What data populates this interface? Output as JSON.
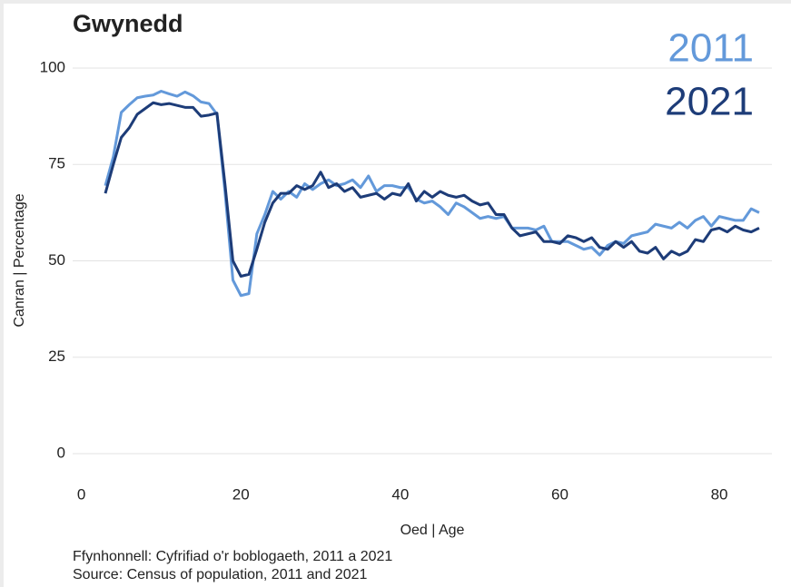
{
  "chart_data": {
    "type": "line",
    "title": "Gwynedd",
    "x_label": "Oed | Age",
    "y_label": "Canran | Percentage",
    "source": [
      "Ffynhonnell: Cyfrifiad o'r boblogaeth, 2011 a 2021",
      "Source: Census of population, 2011 and 2021"
    ],
    "x": [
      3,
      4,
      5,
      6,
      7,
      8,
      9,
      10,
      11,
      12,
      13,
      14,
      15,
      16,
      17,
      18,
      19,
      20,
      21,
      22,
      23,
      24,
      25,
      26,
      27,
      28,
      29,
      30,
      31,
      32,
      33,
      34,
      35,
      36,
      37,
      38,
      39,
      40,
      41,
      42,
      43,
      44,
      45,
      46,
      47,
      48,
      49,
      50,
      51,
      52,
      53,
      54,
      55,
      56,
      57,
      58,
      59,
      60,
      61,
      62,
      63,
      64,
      65,
      66,
      67,
      68,
      69,
      70,
      71,
      72,
      73,
      74,
      75,
      76,
      77,
      78,
      79,
      80,
      81,
      82,
      83,
      84,
      85
    ],
    "series": [
      {
        "name": "2011",
        "color": "#6399da",
        "values": [
          69.5,
          77,
          88.5,
          90.5,
          92.3,
          92.7,
          93,
          94,
          93.3,
          92.7,
          93.8,
          92.8,
          91.2,
          90.8,
          88,
          68,
          45,
          41,
          41.5,
          57,
          62,
          68,
          66,
          68,
          66.5,
          70,
          68.5,
          70,
          71,
          69.5,
          70,
          71,
          69,
          72,
          68,
          69.5,
          69.5,
          69,
          69,
          66,
          65,
          65.5,
          64,
          62,
          65,
          64,
          62.5,
          61,
          61.5,
          61,
          61.5,
          58.5,
          58.5,
          58.5,
          58,
          59,
          55,
          55,
          55,
          54,
          53,
          53.5,
          51.5,
          54,
          55,
          54.5,
          56.5,
          57,
          57.5,
          59.5,
          59,
          58.5,
          60,
          58.5,
          60.5,
          61.5,
          59,
          61.5,
          61,
          60.5,
          60.5,
          63.5,
          62.5
        ]
      },
      {
        "name": "2021",
        "color": "#1d3c78",
        "values": [
          67.5,
          75,
          82,
          84.5,
          88,
          89.5,
          91,
          90.5,
          90.8,
          90.3,
          89.8,
          89.8,
          87.5,
          87.8,
          88.3,
          70,
          50,
          46,
          46.5,
          53,
          60,
          65,
          67.5,
          67.5,
          69.5,
          68.5,
          69.5,
          73,
          69,
          70,
          68,
          69,
          66.5,
          67,
          67.5,
          66,
          67.5,
          67,
          70,
          65.5,
          68,
          66.5,
          68,
          67,
          66.5,
          67,
          65.5,
          64.5,
          65,
          62,
          62,
          58.5,
          56.5,
          57,
          57.5,
          55,
          55,
          54.5,
          56.5,
          56,
          55,
          56,
          53.5,
          53,
          55,
          53.5,
          55,
          52.5,
          52,
          53.5,
          50.5,
          52.5,
          51.5,
          52.5,
          55.5,
          55,
          58,
          58.5,
          57.5,
          59,
          58,
          57.5,
          58.5
        ]
      }
    ],
    "xlim": [
      -1.1,
      86.6
    ],
    "xticks": [
      0,
      20,
      40,
      60,
      80
    ],
    "ylim": [
      0,
      100
    ],
    "yticks": [
      0,
      25,
      50,
      75,
      100
    ],
    "grid": true
  }
}
